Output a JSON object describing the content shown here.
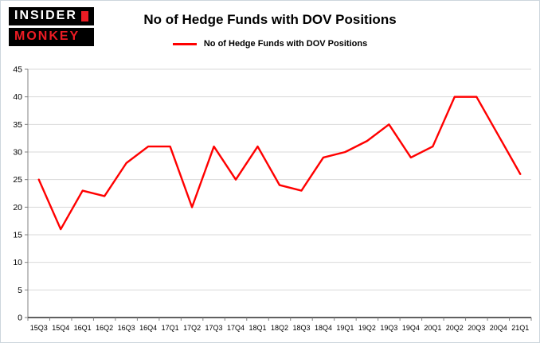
{
  "logo": {
    "line1": "INSIDER",
    "line2": "MONKEY"
  },
  "title": "No of Hedge Funds with DOV Positions",
  "legend": {
    "label": "No of Hedge Funds with DOV Positions"
  },
  "chart_data": {
    "type": "line",
    "title": "No of Hedge Funds with DOV Positions",
    "categories": [
      "15Q3",
      "15Q4",
      "16Q1",
      "16Q2",
      "16Q3",
      "16Q4",
      "17Q1",
      "17Q2",
      "17Q3",
      "17Q4",
      "18Q1",
      "18Q2",
      "18Q3",
      "18Q4",
      "19Q1",
      "19Q2",
      "19Q3",
      "19Q4",
      "20Q1",
      "20Q2",
      "20Q3",
      "20Q4",
      "21Q1"
    ],
    "series": [
      {
        "name": "No of Hedge Funds with DOV Positions",
        "color": "#ff0000",
        "values": [
          25,
          16,
          23,
          22,
          28,
          31,
          31,
          20,
          31,
          25,
          31,
          24,
          23,
          29,
          30,
          32,
          35,
          29,
          31,
          40,
          40,
          33,
          26
        ]
      }
    ],
    "ylim": [
      0,
      45
    ],
    "ytick_step": 5,
    "grid": true,
    "legend_position": "top"
  }
}
